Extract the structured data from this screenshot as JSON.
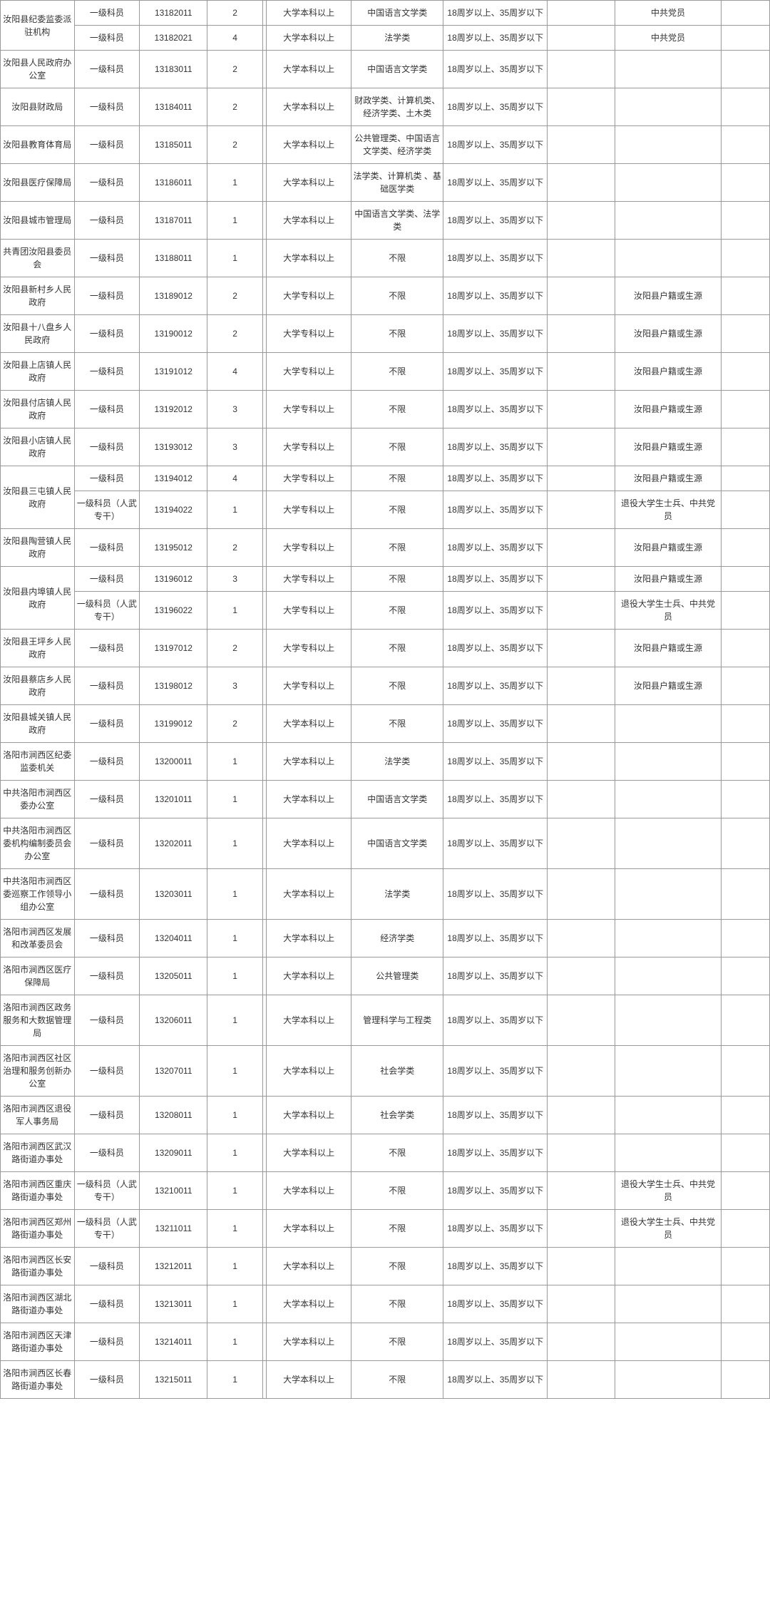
{
  "table": {
    "columns": [
      "org",
      "pos",
      "code",
      "num",
      "empty1",
      "edu",
      "major",
      "age",
      "empty2",
      "other",
      "last"
    ],
    "groups": [
      {
        "org": "汝阳县纪委监委派驻机构",
        "rows": [
          {
            "pos": "一级科员",
            "code": "13182011",
            "num": "2",
            "edu": "大学本科以上",
            "major": "中国语言文学类",
            "age": "18周岁以上、35周岁以下",
            "other": "中共党员"
          },
          {
            "pos": "一级科员",
            "code": "13182021",
            "num": "4",
            "edu": "大学本科以上",
            "major": "法学类",
            "age": "18周岁以上、35周岁以下",
            "other": "中共党员"
          }
        ]
      },
      {
        "org": "汝阳县人民政府办公室",
        "rows": [
          {
            "pos": "一级科员",
            "code": "13183011",
            "num": "2",
            "edu": "大学本科以上",
            "major": "中国语言文学类",
            "age": "18周岁以上、35周岁以下",
            "other": ""
          }
        ]
      },
      {
        "org": "汝阳县财政局",
        "rows": [
          {
            "pos": "一级科员",
            "code": "13184011",
            "num": "2",
            "edu": "大学本科以上",
            "major": "财政学类、计算机类、经济学类、土木类",
            "age": "18周岁以上、35周岁以下",
            "other": ""
          }
        ]
      },
      {
        "org": "汝阳县教育体育局",
        "rows": [
          {
            "pos": "一级科员",
            "code": "13185011",
            "num": "2",
            "edu": "大学本科以上",
            "major": "公共管理类、中国语言文学类、经济学类",
            "age": "18周岁以上、35周岁以下",
            "other": ""
          }
        ]
      },
      {
        "org": "汝阳县医疗保障局",
        "rows": [
          {
            "pos": "一级科员",
            "code": "13186011",
            "num": "1",
            "edu": "大学本科以上",
            "major": "法学类、计算机类\n、基础医学类",
            "age": "18周岁以上、35周岁以下",
            "other": ""
          }
        ]
      },
      {
        "org": "汝阳县城市管理局",
        "rows": [
          {
            "pos": "一级科员",
            "code": "13187011",
            "num": "1",
            "edu": "大学本科以上",
            "major": "中国语言文学类、法学类",
            "age": "18周岁以上、35周岁以下",
            "other": ""
          }
        ]
      },
      {
        "org": "共青团汝阳县委员会",
        "rows": [
          {
            "pos": "一级科员",
            "code": "13188011",
            "num": "1",
            "edu": "大学本科以上",
            "major": "不限",
            "age": "18周岁以上、35周岁以下",
            "other": ""
          }
        ]
      },
      {
        "org": "汝阳县新村乡人民政府",
        "rows": [
          {
            "pos": "一级科员",
            "code": "13189012",
            "num": "2",
            "edu": "大学专科以上",
            "major": "不限",
            "age": "18周岁以上、35周岁以下",
            "other": "汝阳县户籍或生源"
          }
        ]
      },
      {
        "org": "汝阳县十八盘乡人民政府",
        "rows": [
          {
            "pos": "一级科员",
            "code": "13190012",
            "num": "2",
            "edu": "大学专科以上",
            "major": "不限",
            "age": "18周岁以上、35周岁以下",
            "other": "汝阳县户籍或生源"
          }
        ]
      },
      {
        "org": "汝阳县上店镇人民政府",
        "rows": [
          {
            "pos": "一级科员",
            "code": "13191012",
            "num": "4",
            "edu": "大学专科以上",
            "major": "不限",
            "age": "18周岁以上、35周岁以下",
            "other": "汝阳县户籍或生源"
          }
        ]
      },
      {
        "org": "汝阳县付店镇人民政府",
        "rows": [
          {
            "pos": "一级科员",
            "code": "13192012",
            "num": "3",
            "edu": "大学专科以上",
            "major": "不限",
            "age": "18周岁以上、35周岁以下",
            "other": "汝阳县户籍或生源"
          }
        ]
      },
      {
        "org": "汝阳县小店镇人民政府",
        "rows": [
          {
            "pos": "一级科员",
            "code": "13193012",
            "num": "3",
            "edu": "大学专科以上",
            "major": "不限",
            "age": "18周岁以上、35周岁以下",
            "other": "汝阳县户籍或生源"
          }
        ]
      },
      {
        "org": "汝阳县三屯镇人民政府",
        "rows": [
          {
            "pos": "一级科员",
            "code": "13194012",
            "num": "4",
            "edu": "大学专科以上",
            "major": "不限",
            "age": "18周岁以上、35周岁以下",
            "other": "汝阳县户籍或生源"
          },
          {
            "pos": "一级科员（人武专干）",
            "code": "13194022",
            "num": "1",
            "edu": "大学专科以上",
            "major": "不限",
            "age": "18周岁以上、35周岁以下",
            "other": "退役大学生士兵、中共党员"
          }
        ]
      },
      {
        "org": "汝阳县陶营镇人民政府",
        "rows": [
          {
            "pos": "一级科员",
            "code": "13195012",
            "num": "2",
            "edu": "大学专科以上",
            "major": "不限",
            "age": "18周岁以上、35周岁以下",
            "other": "汝阳县户籍或生源"
          }
        ]
      },
      {
        "org": "汝阳县内埠镇人民政府",
        "rows": [
          {
            "pos": "一级科员",
            "code": "13196012",
            "num": "3",
            "edu": "大学专科以上",
            "major": "不限",
            "age": "18周岁以上、35周岁以下",
            "other": "汝阳县户籍或生源"
          },
          {
            "pos": "一级科员（人武专干）",
            "code": "13196022",
            "num": "1",
            "edu": "大学专科以上",
            "major": "不限",
            "age": "18周岁以上、35周岁以下",
            "other": "退役大学生士兵、中共党员"
          }
        ]
      },
      {
        "org": "汝阳县王坪乡人民政府",
        "rows": [
          {
            "pos": "一级科员",
            "code": "13197012",
            "num": "2",
            "edu": "大学专科以上",
            "major": "不限",
            "age": "18周岁以上、35周岁以下",
            "other": "汝阳县户籍或生源"
          }
        ]
      },
      {
        "org": "汝阳县蔡店乡人民政府",
        "rows": [
          {
            "pos": "一级科员",
            "code": "13198012",
            "num": "3",
            "edu": "大学专科以上",
            "major": "不限",
            "age": "18周岁以上、35周岁以下",
            "other": "汝阳县户籍或生源"
          }
        ]
      },
      {
        "org": "汝阳县城关镇人民政府",
        "rows": [
          {
            "pos": "一级科员",
            "code": "13199012",
            "num": "2",
            "edu": "大学本科以上",
            "major": "不限",
            "age": "18周岁以上、35周岁以下",
            "other": ""
          }
        ]
      },
      {
        "org": "洛阳市涧西区纪委监委机关",
        "rows": [
          {
            "pos": "一级科员",
            "code": "13200011",
            "num": "1",
            "edu": "大学本科以上",
            "major": "法学类",
            "age": "18周岁以上、35周岁以下",
            "other": ""
          }
        ]
      },
      {
        "org": "中共洛阳市涧西区委办公室",
        "rows": [
          {
            "pos": "一级科员",
            "code": "13201011",
            "num": "1",
            "edu": "大学本科以上",
            "major": "中国语言文学类",
            "age": "18周岁以上、35周岁以下",
            "other": ""
          }
        ]
      },
      {
        "org": "中共洛阳市涧西区委机构编制委员会办公室",
        "rows": [
          {
            "pos": "一级科员",
            "code": "13202011",
            "num": "1",
            "edu": "大学本科以上",
            "major": "中国语言文学类",
            "age": "18周岁以上、35周岁以下",
            "other": ""
          }
        ]
      },
      {
        "org": "中共洛阳市涧西区委巡察工作领导小组办公室",
        "rows": [
          {
            "pos": "一级科员",
            "code": "13203011",
            "num": "1",
            "edu": "大学本科以上",
            "major": "法学类",
            "age": "18周岁以上、35周岁以下",
            "other": ""
          }
        ]
      },
      {
        "org": "洛阳市涧西区发展和改革委员会",
        "rows": [
          {
            "pos": "一级科员",
            "code": "13204011",
            "num": "1",
            "edu": "大学本科以上",
            "major": "经济学类",
            "age": "18周岁以上、35周岁以下",
            "other": ""
          }
        ]
      },
      {
        "org": "洛阳市涧西区医疗保障局",
        "rows": [
          {
            "pos": "一级科员",
            "code": "13205011",
            "num": "1",
            "edu": "大学本科以上",
            "major": "公共管理类",
            "age": "18周岁以上、35周岁以下",
            "other": ""
          }
        ]
      },
      {
        "org": "洛阳市涧西区政务服务和大数据管理局",
        "rows": [
          {
            "pos": "一级科员",
            "code": "13206011",
            "num": "1",
            "edu": "大学本科以上",
            "major": "管理科学与工程类",
            "age": "18周岁以上、35周岁以下",
            "other": ""
          }
        ]
      },
      {
        "org": "洛阳市涧西区社区治理和服务创新办公室",
        "rows": [
          {
            "pos": "一级科员",
            "code": "13207011",
            "num": "1",
            "edu": "大学本科以上",
            "major": "社会学类",
            "age": "18周岁以上、35周岁以下",
            "other": ""
          }
        ]
      },
      {
        "org": "洛阳市涧西区退役军人事务局",
        "rows": [
          {
            "pos": "一级科员",
            "code": "13208011",
            "num": "1",
            "edu": "大学本科以上",
            "major": "社会学类",
            "age": "18周岁以上、35周岁以下",
            "other": ""
          }
        ]
      },
      {
        "org": "洛阳市涧西区武汉路街道办事处",
        "rows": [
          {
            "pos": "一级科员",
            "code": "13209011",
            "num": "1",
            "edu": "大学本科以上",
            "major": "不限",
            "age": "18周岁以上、35周岁以下",
            "other": ""
          }
        ]
      },
      {
        "org": "洛阳市涧西区重庆路街道办事处",
        "rows": [
          {
            "pos": "一级科员（人武专干）",
            "code": "13210011",
            "num": "1",
            "edu": "大学本科以上",
            "major": "不限",
            "age": "18周岁以上、35周岁以下",
            "other": "退役大学生士兵、中共党员"
          }
        ]
      },
      {
        "org": "洛阳市涧西区郑州路街道办事处",
        "rows": [
          {
            "pos": "一级科员（人武专干）",
            "code": "13211011",
            "num": "1",
            "edu": "大学本科以上",
            "major": "不限",
            "age": "18周岁以上、35周岁以下",
            "other": "退役大学生士兵、中共党员"
          }
        ]
      },
      {
        "org": "洛阳市涧西区长安路街道办事处",
        "rows": [
          {
            "pos": "一级科员",
            "code": "13212011",
            "num": "1",
            "edu": "大学本科以上",
            "major": "不限",
            "age": "18周岁以上、35周岁以下",
            "other": ""
          }
        ]
      },
      {
        "org": "洛阳市涧西区湖北路街道办事处",
        "rows": [
          {
            "pos": "一级科员",
            "code": "13213011",
            "num": "1",
            "edu": "大学本科以上",
            "major": "不限",
            "age": "18周岁以上、35周岁以下",
            "other": ""
          }
        ]
      },
      {
        "org": "洛阳市涧西区天津路街道办事处",
        "rows": [
          {
            "pos": "一级科员",
            "code": "13214011",
            "num": "1",
            "edu": "大学本科以上",
            "major": "不限",
            "age": "18周岁以上、35周岁以下",
            "other": ""
          }
        ]
      },
      {
        "org": "洛阳市涧西区长春路街道办事处",
        "rows": [
          {
            "pos": "一级科员",
            "code": "13215011",
            "num": "1",
            "edu": "大学本科以上",
            "major": "不限",
            "age": "18周岁以上、35周岁以下",
            "other": ""
          }
        ]
      }
    ]
  }
}
